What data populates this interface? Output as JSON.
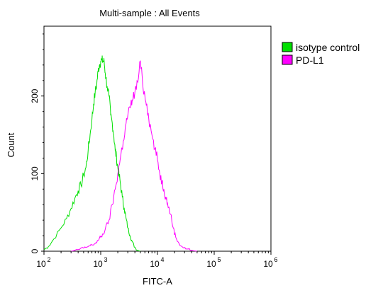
{
  "chart_data": {
    "type": "line",
    "title": "Multi-sample : All Events",
    "xlabel": "FITC-A",
    "ylabel": "Count",
    "x_scale": "log",
    "xlim": [
      100,
      1000000
    ],
    "ylim": [
      0,
      290
    ],
    "x_ticks": [
      {
        "value": 100,
        "base": "10",
        "exp": "2"
      },
      {
        "value": 1000,
        "base": "10",
        "exp": "3"
      },
      {
        "value": 10000,
        "base": "10",
        "exp": "4"
      },
      {
        "value": 100000,
        "base": "10",
        "exp": "5"
      },
      {
        "value": 1000000,
        "base": "10",
        "exp": "6"
      }
    ],
    "y_ticks": [
      {
        "value": 0,
        "label": "0"
      },
      {
        "value": 100,
        "label": "100"
      },
      {
        "value": 200,
        "label": "200"
      }
    ],
    "legend_position": "right",
    "series": [
      {
        "name": "isotype control",
        "color": "#00e000",
        "points": [
          [
            100,
            2
          ],
          [
            120,
            6
          ],
          [
            150,
            16
          ],
          [
            200,
            30
          ],
          [
            250,
            42
          ],
          [
            300,
            55
          ],
          [
            350,
            68
          ],
          [
            400,
            78
          ],
          [
            450,
            85
          ],
          [
            500,
            98
          ],
          [
            550,
            108
          ],
          [
            600,
            130
          ],
          [
            650,
            150
          ],
          [
            700,
            170
          ],
          [
            750,
            190
          ],
          [
            800,
            205
          ],
          [
            850,
            215
          ],
          [
            900,
            232
          ],
          [
            950,
            240
          ],
          [
            1000,
            245
          ],
          [
            1050,
            246
          ],
          [
            1100,
            245
          ],
          [
            1150,
            244
          ],
          [
            1200,
            230
          ],
          [
            1300,
            212
          ],
          [
            1400,
            200
          ],
          [
            1500,
            175
          ],
          [
            1600,
            165
          ],
          [
            1700,
            150
          ],
          [
            1800,
            130
          ],
          [
            1900,
            120
          ],
          [
            2000,
            108
          ],
          [
            2100,
            98
          ],
          [
            2200,
            90
          ],
          [
            2400,
            70
          ],
          [
            2600,
            55
          ],
          [
            2800,
            42
          ],
          [
            3000,
            30
          ],
          [
            3300,
            20
          ],
          [
            3600,
            12
          ],
          [
            4000,
            5
          ],
          [
            4500,
            1
          ],
          [
            5000,
            0
          ]
        ]
      },
      {
        "name": "PD-L1",
        "color": "#ff00ff",
        "points": [
          [
            300,
            0
          ],
          [
            400,
            2
          ],
          [
            500,
            4
          ],
          [
            600,
            6
          ],
          [
            700,
            8
          ],
          [
            800,
            10
          ],
          [
            900,
            14
          ],
          [
            1000,
            18
          ],
          [
            1100,
            22
          ],
          [
            1200,
            28
          ],
          [
            1400,
            40
          ],
          [
            1600,
            60
          ],
          [
            1800,
            80
          ],
          [
            2000,
            100
          ],
          [
            2200,
            118
          ],
          [
            2500,
            142
          ],
          [
            2800,
            165
          ],
          [
            3000,
            175
          ],
          [
            3300,
            185
          ],
          [
            3600,
            195
          ],
          [
            4000,
            205
          ],
          [
            4500,
            218
          ],
          [
            5000,
            245
          ],
          [
            5500,
            215
          ],
          [
            6000,
            200
          ],
          [
            6500,
            190
          ],
          [
            7000,
            172
          ],
          [
            8000,
            150
          ],
          [
            9000,
            132
          ],
          [
            10000,
            118
          ],
          [
            11000,
            100
          ],
          [
            12000,
            90
          ],
          [
            13000,
            80
          ],
          [
            14000,
            70
          ],
          [
            15000,
            62
          ],
          [
            17000,
            48
          ],
          [
            19000,
            30
          ],
          [
            21000,
            18
          ],
          [
            24000,
            10
          ],
          [
            28000,
            5
          ],
          [
            33000,
            3
          ],
          [
            40000,
            1
          ],
          [
            50000,
            0
          ]
        ]
      }
    ]
  }
}
